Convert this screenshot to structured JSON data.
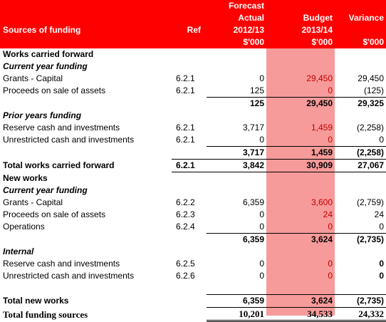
{
  "header": {
    "label": "Sources of funding",
    "ref": "Ref",
    "forecast": [
      "Forecast",
      "Actual",
      "2012/13",
      "$'000"
    ],
    "budget": [
      "Budget",
      "2013/14",
      "$'000"
    ],
    "variance": [
      "Variance",
      "$'000"
    ]
  },
  "works_cf": {
    "title": "Works carried forward",
    "current": {
      "title": "Current year funding",
      "rows": [
        {
          "label": "Grants - Capital",
          "ref": "6.2.1",
          "forecast": "0",
          "budget": "29,450",
          "variance": "29,450"
        },
        {
          "label": "Proceeds on sale of assets",
          "ref": "6.2.1",
          "forecast": "125",
          "budget": "0",
          "variance": "(125)"
        }
      ],
      "subtotal": {
        "forecast": "125",
        "budget": "29,450",
        "variance": "29,325"
      }
    },
    "prior": {
      "title": "Prior years funding",
      "rows": [
        {
          "label": "Reserve cash and investments",
          "ref": "6.2.1",
          "forecast": "3,717",
          "budget": "1,459",
          "variance": "(2,258)"
        },
        {
          "label": "Unrestricted cash and investments",
          "ref": "6.2.1",
          "forecast": "0",
          "budget": "0",
          "variance": "0"
        }
      ],
      "subtotal": {
        "forecast": "3,717",
        "budget": "1,459",
        "variance": "(2,258)"
      }
    },
    "total": {
      "label": "Total works carried forward",
      "ref": "6.2.1",
      "forecast": "3,842",
      "budget": "30,909",
      "variance": "27,067"
    }
  },
  "new_works": {
    "title": "New works",
    "current": {
      "title": "Current year funding",
      "rows": [
        {
          "label": "Grants - Capital",
          "ref": "6.2.2",
          "forecast": "6,359",
          "budget": "3,600",
          "variance": "(2,759)"
        },
        {
          "label": "Proceeds on sale of assets",
          "ref": "6.2.3",
          "forecast": "0",
          "budget": "24",
          "variance": "24"
        },
        {
          "label": "Operations",
          "ref": "6.2.4",
          "forecast": "0",
          "budget": "0",
          "variance": "0"
        }
      ],
      "subtotal": {
        "forecast": "6,359",
        "budget": "3,624",
        "variance": "(2,735)"
      }
    },
    "internal": {
      "title": "Internal",
      "rows": [
        {
          "label": "Reserve cash and investments",
          "ref": "6.2.5",
          "forecast": "0",
          "budget": "0",
          "variance": "0"
        },
        {
          "label": "Unrestricted cash and investments",
          "ref": "6.2.6",
          "forecast": "0",
          "budget": "0",
          "variance": "0"
        }
      ]
    },
    "total": {
      "label": "Total new works",
      "forecast": "6,359",
      "budget": "3,624",
      "variance": "(2,735)"
    }
  },
  "grand_total": {
    "label": "Total funding sources",
    "forecast": "10,201",
    "budget": "34,533",
    "variance": "24,332"
  },
  "colors": {
    "header_bg": "#ff0000",
    "budget_band": "#f79a9a",
    "budget_text": "#c00000"
  }
}
